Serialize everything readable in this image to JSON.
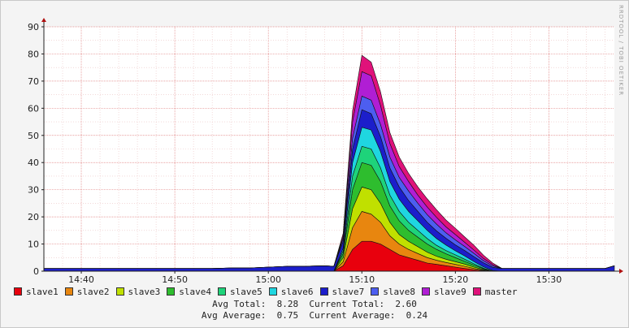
{
  "chart_data": {
    "type": "area",
    "stacked": true,
    "watermark": "RRDTOOL / TOBI OETIKER",
    "x_ticks": [
      "14:40",
      "14:50",
      "15:00",
      "15:10",
      "15:20",
      "15:30"
    ],
    "y_ticks": [
      0,
      10,
      20,
      30,
      40,
      50,
      60,
      70,
      80,
      90
    ],
    "ylim": [
      0,
      90
    ],
    "x": [
      "14:36",
      "14:37",
      "14:38",
      "14:39",
      "14:40",
      "14:42",
      "14:44",
      "14:46",
      "14:48",
      "14:50",
      "14:52",
      "14:54",
      "14:56",
      "14:58",
      "15:00",
      "15:02",
      "15:04",
      "15:06",
      "15:07",
      "15:08",
      "15:09",
      "15:10",
      "15:11",
      "15:12",
      "15:13",
      "15:14",
      "15:15",
      "15:16",
      "15:17",
      "15:18",
      "15:19",
      "15:20",
      "15:21",
      "15:22",
      "15:23",
      "15:24",
      "15:25",
      "15:26",
      "15:28",
      "15:30",
      "15:32",
      "15:34",
      "15:36",
      "15:37"
    ],
    "series": [
      {
        "name": "slave1",
        "color": "#e8000d",
        "values": [
          0,
          0,
          0,
          0,
          0,
          0,
          0,
          0,
          0,
          0,
          0,
          0,
          0,
          0,
          0,
          0,
          0,
          0,
          0,
          2,
          8,
          11,
          11,
          10,
          8,
          6,
          5,
          4,
          3,
          2.5,
          2,
          1.5,
          1,
          0.5,
          0.2,
          0,
          0,
          0,
          0,
          0,
          0,
          0,
          0,
          0
        ]
      },
      {
        "name": "slave2",
        "color": "#e8860f",
        "values": [
          0,
          0,
          0,
          0,
          0,
          0,
          0,
          0,
          0,
          0,
          0,
          0,
          0,
          0,
          0,
          0,
          0,
          0,
          0,
          1.5,
          8,
          11,
          10,
          8,
          5,
          4,
          3,
          2.5,
          2,
          1.5,
          1.2,
          1,
          0.8,
          0.5,
          0.2,
          0,
          0,
          0,
          0,
          0,
          0,
          0,
          0,
          0
        ]
      },
      {
        "name": "slave3",
        "color": "#c0e000",
        "values": [
          0,
          0,
          0,
          0,
          0,
          0,
          0,
          0,
          0,
          0,
          0,
          0,
          0,
          0,
          0,
          0,
          0,
          0,
          0,
          1.5,
          7,
          9,
          9,
          7,
          5,
          3.5,
          3,
          2.5,
          2,
          1.5,
          1.2,
          1,
          0.8,
          0.5,
          0.2,
          0,
          0,
          0,
          0,
          0,
          0,
          0,
          0,
          0
        ]
      },
      {
        "name": "slave4",
        "color": "#2ebd2e",
        "values": [
          0,
          0,
          0,
          0,
          0,
          0,
          0,
          0,
          0,
          0,
          0,
          0,
          0,
          0,
          0,
          0,
          0,
          0,
          0,
          1.5,
          7,
          9,
          9,
          8,
          6,
          5,
          4,
          3.5,
          3,
          2.5,
          2,
          1.5,
          1,
          0.7,
          0.3,
          0,
          0,
          0,
          0,
          0,
          0,
          0,
          0,
          0
        ]
      },
      {
        "name": "slave5",
        "color": "#1ed37a",
        "values": [
          0,
          0,
          0,
          0,
          0,
          0,
          0,
          0,
          0,
          0,
          0,
          0,
          0,
          0,
          0,
          0,
          0,
          0,
          0,
          1,
          5,
          6,
          6,
          5,
          4,
          3.5,
          3,
          2.5,
          2,
          1.5,
          1.2,
          1,
          0.8,
          0.5,
          0.2,
          0,
          0,
          0,
          0,
          0,
          0,
          0,
          0,
          0
        ]
      },
      {
        "name": "slave6",
        "color": "#1fd6e0",
        "values": [
          0,
          0,
          0,
          0,
          0,
          0,
          0,
          0,
          0,
          0,
          0,
          0,
          0,
          0,
          0,
          0,
          0,
          0,
          0,
          1,
          5,
          7,
          7,
          6,
          5,
          4.5,
          4,
          3.5,
          3,
          2.5,
          2,
          1.5,
          1.2,
          0.8,
          0.5,
          0.2,
          0,
          0,
          0,
          0,
          0,
          0,
          0,
          0
        ]
      },
      {
        "name": "slave7",
        "color": "#1c1ecb",
        "values": [
          1,
          1,
          1,
          1,
          1,
          1,
          1,
          1,
          1,
          1,
          1,
          1,
          1.2,
          1.2,
          1.5,
          1.8,
          1.8,
          2,
          1.8,
          2.5,
          5,
          6.5,
          6,
          5.5,
          5,
          4.5,
          4,
          3.5,
          3,
          2.8,
          2.5,
          2.2,
          2,
          1.8,
          1.5,
          1.2,
          1,
          1,
          1,
          1,
          1,
          1,
          1,
          2
        ]
      },
      {
        "name": "slave8",
        "color": "#4d5ef0",
        "values": [
          0,
          0,
          0,
          0,
          0,
          0,
          0,
          0,
          0,
          0,
          0,
          0,
          0,
          0,
          0,
          0,
          0,
          0,
          0,
          1,
          4,
          5,
          5,
          4.5,
          4,
          3.5,
          3.5,
          3,
          2.8,
          2.5,
          2,
          1.8,
          1.5,
          1.2,
          0.8,
          0.5,
          0,
          0,
          0,
          0,
          0,
          0,
          0,
          0
        ]
      },
      {
        "name": "slave9",
        "color": "#b01ed4",
        "values": [
          0,
          0,
          0,
          0,
          0,
          0,
          0,
          0,
          0,
          0,
          0,
          0,
          0,
          0,
          0,
          0,
          0,
          0,
          0,
          1,
          6,
          9,
          9,
          7,
          5,
          4,
          3.5,
          3,
          2.8,
          2.5,
          2.2,
          2,
          1.5,
          1.2,
          0.8,
          0.5,
          0,
          0,
          0,
          0,
          0,
          0,
          0,
          0
        ]
      },
      {
        "name": "master",
        "color": "#e0127a",
        "values": [
          0,
          0,
          0,
          0,
          0,
          0,
          0,
          0,
          0,
          0,
          0,
          0,
          0,
          0,
          0,
          0,
          0,
          0,
          0,
          1,
          4,
          6,
          5,
          5,
          4,
          3.5,
          3,
          3,
          3,
          2.8,
          2.5,
          2.3,
          2,
          1.8,
          1.2,
          0.6,
          0,
          0,
          0,
          0,
          0,
          0,
          0,
          0
        ]
      }
    ],
    "stats": {
      "avg_total_label": "Avg Total:",
      "avg_total": "8.28",
      "current_total_label": "Current Total:",
      "current_total": "2.60",
      "avg_average_label": "Avg Average:",
      "avg_average": "0.75",
      "current_average_label": "Current Average:",
      "current_average": "0.24"
    },
    "grid": true,
    "legend_position": "bottom"
  }
}
